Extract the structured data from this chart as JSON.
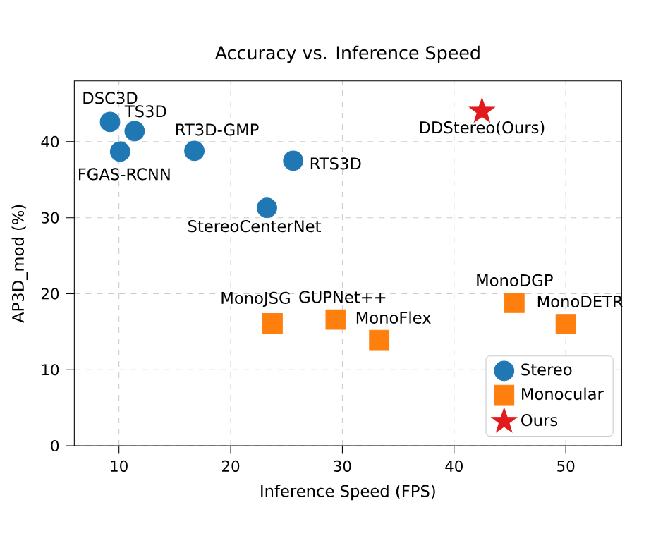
{
  "chart_data": {
    "type": "scatter",
    "title": "Accuracy vs. Inference Speed",
    "xlabel": "Inference Speed (FPS)",
    "ylabel": "AP3D_mod (%)",
    "xlim": [
      6,
      55
    ],
    "ylim": [
      0,
      48
    ],
    "xticks": [
      10,
      20,
      30,
      40,
      50
    ],
    "yticks": [
      0,
      10,
      20,
      30,
      40
    ],
    "grid": true,
    "legend": "bottom right",
    "series": [
      {
        "name": "Stereo",
        "color": "#1f77b4",
        "marker": "circle",
        "x": [
          9.2,
          11.4,
          10.1,
          16.75,
          25.6,
          23.25
        ],
        "values": [
          42.6,
          41.4,
          38.7,
          38.8,
          37.5,
          31.3
        ]
      },
      {
        "name": "Monocular",
        "color": "#ff7f0e",
        "marker": "square",
        "x": [
          23.75,
          29.4,
          33.3,
          45.4,
          50.0
        ],
        "values": [
          16.1,
          16.6,
          13.9,
          18.8,
          16.0
        ]
      },
      {
        "name": "Ours",
        "color": "#e31a1c",
        "marker": "star",
        "x": [
          42.5
        ],
        "values": [
          44.0
        ]
      }
    ],
    "annotations": [
      {
        "text": "DSC3D",
        "x": 9.2,
        "y": 42.6
      },
      {
        "text": "TS3D",
        "x": 11.4,
        "y": 41.4
      },
      {
        "text": "FGAS-RCNN",
        "x": 10.1,
        "y": 38.7
      },
      {
        "text": "RT3D-GMP",
        "x": 16.75,
        "y": 38.8
      },
      {
        "text": "RTS3D",
        "x": 25.6,
        "y": 37.5
      },
      {
        "text": "StereoCenterNet",
        "x": 23.25,
        "y": 31.3
      },
      {
        "text": "MonoJSG",
        "x": 23.75,
        "y": 16.1
      },
      {
        "text": "GUPNet++",
        "x": 29.4,
        "y": 16.6
      },
      {
        "text": "MonoFlex",
        "x": 33.3,
        "y": 13.9
      },
      {
        "text": "MonoDGP",
        "x": 45.4,
        "y": 18.8
      },
      {
        "text": "MonoDETR",
        "x": 50.0,
        "y": 16.0
      },
      {
        "text": "DDStereo(Ours)",
        "x": 42.5,
        "y": 44.0
      }
    ]
  }
}
